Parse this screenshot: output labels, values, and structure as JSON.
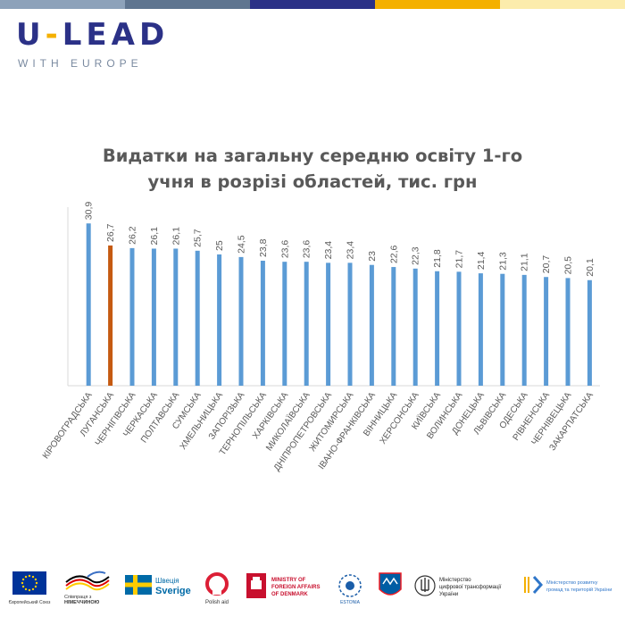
{
  "colors": {
    "top_bar": [
      "#8da2ba",
      "#5f7590",
      "#2b3187",
      "#f4b000",
      "#fcecac"
    ],
    "bar_default": "#5b9bd5",
    "bar_highlight": "#c55a11",
    "brand": "#2b3187",
    "brand_accent": "#f4b000"
  },
  "logo": {
    "main_left": "U",
    "main_dash": "-",
    "main_right": "LEAD",
    "sub": "WITH EUROPE"
  },
  "chart_data": {
    "type": "bar",
    "title_line1": "Видатки на загальну середню освіту 1-го",
    "title_line2": "учня в розрізі областей, тис. грн",
    "categories": [
      "КІРОВОГРАДСЬКА",
      "ЛУГАНСЬКА",
      "ЧЕРНІГІВСЬКА",
      "ЧЕРКАСЬКА",
      "ПОЛТАВСЬКА",
      "СУМСЬКА",
      "ХМЕЛЬНИЦЬКА",
      "ЗАПОРІЗЬКА",
      "ТЕРНОПІЛЬСЬКА",
      "ХАРКІВСЬКА",
      "МИКОЛАЇВСЬКА",
      "ДНІПРОПЕТРОВСЬКА",
      "ЖИТОМИРСЬКА",
      "ІВАНО-ФРАНКІВСЬКА",
      "ВІННИЦЬКА",
      "ХЕРСОНСЬКА",
      "КИЇВСЬКА",
      "ВОЛИНСЬКА",
      "ДОНЕЦЬКА",
      "ЛЬВІВСЬКА",
      "ОДЕСЬКА",
      "РІВНЕНСЬКА",
      "ЧЕРНІВЕЦЬКА",
      "ЗАКАРПАТСЬКА"
    ],
    "values": [
      30.9,
      26.7,
      26.2,
      26.1,
      26.1,
      25.7,
      25,
      24.5,
      23.8,
      23.6,
      23.6,
      23.4,
      23.4,
      23,
      22.6,
      22.3,
      21.8,
      21.7,
      21.4,
      21.3,
      21.1,
      20.7,
      20.5,
      20.1
    ],
    "value_labels": [
      "30,9",
      "26,7",
      "26,2",
      "26,1",
      "26,1",
      "25,7",
      "25",
      "24,5",
      "23,8",
      "23,6",
      "23,6",
      "23,4",
      "23,4",
      "23",
      "22,6",
      "22,3",
      "21,8",
      "21,7",
      "21,4",
      "21,3",
      "21,1",
      "20,7",
      "20,5",
      "20,1"
    ],
    "highlight_category": "ЛУГАНСЬКА",
    "ylim": [
      0,
      34
    ],
    "grid": false,
    "legend": "none"
  },
  "footer": {
    "eu": "Європейський Союз",
    "germany": [
      "Співпраця з",
      "НІМЕЧЧИНОЮ"
    ],
    "sweden": [
      "Швеція",
      "Sverige"
    ],
    "polish_aid": "Polish aid",
    "denmark": [
      "MINISTRY OF",
      "FOREIGN AFFAIRS",
      "OF DENMARK"
    ],
    "estonia": "ESTONIA",
    "ukraine_digital": [
      "Міністерство",
      "цифрової трансформації",
      "України"
    ],
    "ukraine_regional": [
      "Міністерство розвитку",
      "громад та територій України"
    ]
  }
}
